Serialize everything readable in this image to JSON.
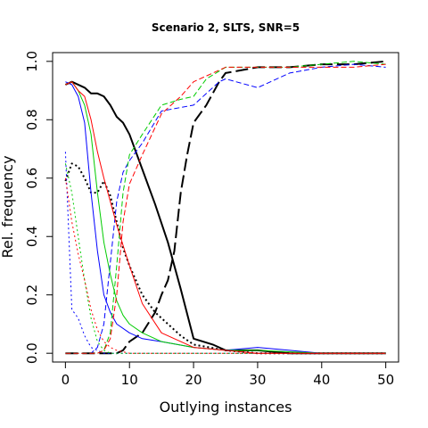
{
  "chart_data": {
    "type": "line",
    "title": "Scenario 2, SLTS, SNR=5",
    "xlabel": "Outlying instances",
    "ylabel": "Rel. frequency",
    "xlim": [
      -2,
      52
    ],
    "ylim": [
      -0.03,
      1.03
    ],
    "xticks": [
      "0",
      "10",
      "20",
      "30",
      "40",
      "50"
    ],
    "xtick_values": [
      0,
      10,
      20,
      30,
      40,
      50
    ],
    "yticks": [
      "0.0",
      "0.2",
      "0.4",
      "0.6",
      "0.8",
      "1.0"
    ],
    "ytick_values": [
      0,
      0.2,
      0.4,
      0.6,
      0.8,
      1.0
    ],
    "grid": false,
    "series": [
      {
        "color": "#000000",
        "dash": "solid",
        "width": 2,
        "x": [
          0,
          1,
          3,
          4,
          5,
          6,
          7,
          8,
          9,
          10,
          12,
          14,
          16,
          18,
          20,
          23,
          25,
          30,
          35,
          40,
          45,
          50
        ],
        "y": [
          0.92,
          0.93,
          0.91,
          0.89,
          0.89,
          0.88,
          0.85,
          0.81,
          0.79,
          0.75,
          0.63,
          0.51,
          0.38,
          0.22,
          0.05,
          0.03,
          0.01,
          0.01,
          0.0,
          0.0,
          0.0,
          0.0
        ]
      },
      {
        "color": "#000000",
        "dash": "dotted",
        "width": 2,
        "x": [
          0,
          1,
          2,
          3,
          4,
          5,
          6,
          7,
          8,
          9,
          10,
          12,
          14,
          16,
          18,
          20,
          25,
          30,
          40,
          50
        ],
        "y": [
          0.59,
          0.65,
          0.64,
          0.6,
          0.55,
          0.55,
          0.59,
          0.54,
          0.45,
          0.36,
          0.3,
          0.2,
          0.14,
          0.1,
          0.06,
          0.03,
          0.01,
          0.0,
          0.0,
          0.0
        ]
      },
      {
        "color": "#000000",
        "dash": "longdash",
        "width": 2,
        "x": [
          0,
          4,
          6,
          7,
          8,
          9,
          10,
          12,
          14,
          15,
          16,
          17,
          18,
          19,
          20,
          22,
          24,
          25,
          30,
          35,
          40,
          45,
          50
        ],
        "y": [
          0.0,
          0.0,
          0.0,
          0.0,
          0.0,
          0.01,
          0.04,
          0.07,
          0.14,
          0.2,
          0.25,
          0.35,
          0.55,
          0.68,
          0.79,
          0.85,
          0.93,
          0.96,
          0.98,
          0.98,
          0.99,
          0.99,
          1.0
        ]
      },
      {
        "color": "#0000ff",
        "dash": "solid",
        "width": 1,
        "x": [
          0,
          1,
          2,
          3,
          4,
          5,
          6,
          7,
          8,
          10,
          12,
          15,
          20,
          25,
          30,
          35,
          40,
          50
        ],
        "y": [
          0.93,
          0.92,
          0.88,
          0.79,
          0.55,
          0.35,
          0.2,
          0.14,
          0.1,
          0.07,
          0.05,
          0.04,
          0.02,
          0.01,
          0.02,
          0.01,
          0.0,
          0.0
        ]
      },
      {
        "color": "#0000ff",
        "dash": "dotted",
        "width": 1,
        "x": [
          0,
          1,
          2,
          3,
          4,
          5,
          6,
          10,
          20,
          50
        ],
        "y": [
          0.69,
          0.15,
          0.12,
          0.06,
          0.02,
          0.01,
          0.0,
          0.0,
          0.0,
          0.0
        ]
      },
      {
        "color": "#0000ff",
        "dash": "dashed",
        "width": 1,
        "x": [
          0,
          2,
          4,
          5,
          6,
          7,
          8,
          9,
          10,
          12,
          15,
          20,
          24,
          25,
          30,
          35,
          40,
          45,
          50
        ],
        "y": [
          0.0,
          0.0,
          0.0,
          0.02,
          0.1,
          0.31,
          0.52,
          0.62,
          0.66,
          0.72,
          0.83,
          0.85,
          0.93,
          0.94,
          0.91,
          0.96,
          0.98,
          0.99,
          0.98
        ]
      },
      {
        "color": "#00cc00",
        "dash": "solid",
        "width": 1,
        "x": [
          0,
          1,
          2,
          3,
          4,
          5,
          6,
          7,
          8,
          9,
          10,
          12,
          15,
          20,
          25,
          30,
          40,
          50
        ],
        "y": [
          0.92,
          0.93,
          0.9,
          0.85,
          0.75,
          0.55,
          0.38,
          0.27,
          0.18,
          0.13,
          0.1,
          0.07,
          0.04,
          0.02,
          0.01,
          0.01,
          0.0,
          0.0
        ]
      },
      {
        "color": "#00cc00",
        "dash": "dotted",
        "width": 1,
        "x": [
          0,
          1,
          2,
          3,
          4,
          5,
          6,
          7,
          8,
          10,
          20,
          50
        ],
        "y": [
          0.65,
          0.55,
          0.4,
          0.25,
          0.12,
          0.04,
          0.01,
          0.0,
          0.0,
          0.0,
          0.0,
          0.0
        ]
      },
      {
        "color": "#00cc00",
        "dash": "dashed",
        "width": 1,
        "x": [
          0,
          4,
          5,
          6,
          7,
          8,
          9,
          10,
          12,
          15,
          18,
          20,
          22,
          25,
          30,
          35,
          40,
          45,
          50
        ],
        "y": [
          0.0,
          0.0,
          0.0,
          0.01,
          0.07,
          0.3,
          0.55,
          0.68,
          0.75,
          0.85,
          0.87,
          0.88,
          0.94,
          0.98,
          0.98,
          0.98,
          0.99,
          1.0,
          0.99
        ]
      },
      {
        "color": "#ff0000",
        "dash": "solid",
        "width": 1,
        "x": [
          0,
          1,
          2,
          3,
          4,
          5,
          6,
          7,
          8,
          9,
          10,
          12,
          15,
          20,
          25,
          30,
          40,
          50
        ],
        "y": [
          0.92,
          0.93,
          0.9,
          0.88,
          0.8,
          0.69,
          0.6,
          0.52,
          0.44,
          0.37,
          0.3,
          0.17,
          0.07,
          0.02,
          0.01,
          0.0,
          0.0,
          0.0
        ]
      },
      {
        "color": "#ff0000",
        "dash": "dotted",
        "width": 1,
        "x": [
          0,
          1,
          2,
          3,
          4,
          5,
          6,
          7,
          8,
          10,
          15,
          20,
          25,
          50
        ],
        "y": [
          0.6,
          0.45,
          0.34,
          0.25,
          0.15,
          0.08,
          0.04,
          0.02,
          0.01,
          0.0,
          0.0,
          0.0,
          0.0,
          0.0
        ]
      },
      {
        "color": "#ff0000",
        "dash": "dashed",
        "width": 1,
        "x": [
          0,
          4,
          5,
          6,
          7,
          8,
          9,
          10,
          12,
          15,
          18,
          20,
          25,
          30,
          35,
          40,
          45,
          50
        ],
        "y": [
          0.0,
          0.0,
          0.0,
          0.01,
          0.05,
          0.2,
          0.45,
          0.58,
          0.68,
          0.82,
          0.88,
          0.93,
          0.98,
          0.98,
          0.98,
          0.98,
          0.98,
          0.99
        ]
      }
    ]
  }
}
